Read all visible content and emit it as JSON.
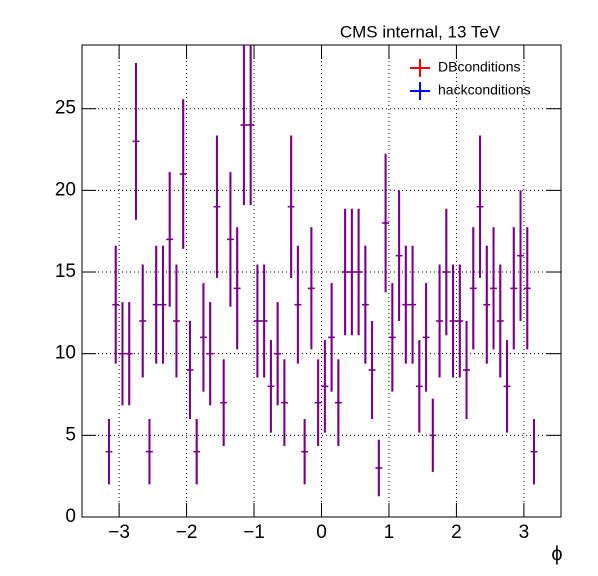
{
  "chart_data": {
    "type": "histogram_errorbar",
    "title": "CMS internal, 13 TeV",
    "x_label": "ϕ",
    "bins": [
      -3.2,
      -3.1,
      -3.0,
      -2.9,
      -2.8,
      -2.7,
      -2.6,
      -2.5,
      -2.4,
      -2.3,
      -2.2,
      -2.1,
      -2.0,
      -1.9,
      -1.8,
      -1.7,
      -1.6,
      -1.5,
      -1.4,
      -1.3,
      -1.2,
      -1.1,
      -1.0,
      -0.9,
      -0.8,
      -0.7,
      -0.6,
      -0.5,
      -0.4,
      -0.3,
      -0.2,
      -0.1,
      0.0,
      0.1,
      0.2,
      0.3,
      0.4,
      0.5,
      0.6,
      0.7,
      0.8,
      0.9,
      1.0,
      1.1,
      1.2,
      1.3,
      1.4,
      1.5,
      1.6,
      1.7,
      1.8,
      1.9,
      2.0,
      2.1,
      2.2,
      2.3,
      2.4,
      2.5,
      2.6,
      2.7,
      2.8,
      2.9,
      3.0,
      3.1,
      3.2
    ],
    "series": [
      {
        "name": "DBconditions",
        "color": "#ff0000",
        "values": [
          4,
          13,
          10,
          10,
          23,
          12,
          4,
          13,
          13,
          17,
          12,
          21,
          9,
          4,
          11,
          10,
          19,
          7,
          17,
          14,
          24,
          24,
          12,
          12,
          8,
          10,
          7,
          19,
          13,
          4,
          14,
          7,
          8,
          11,
          7,
          15,
          15,
          15,
          13,
          9,
          3,
          18,
          11,
          16,
          13,
          13,
          8,
          11,
          5,
          12,
          15,
          12,
          12,
          9,
          14,
          19,
          13,
          14,
          12,
          8,
          14,
          16,
          14,
          4
        ],
        "errors": [
          2,
          3.61,
          3.16,
          3.16,
          4.8,
          3.46,
          2,
          3.61,
          3.61,
          4.12,
          3.46,
          4.58,
          3,
          2,
          3.32,
          3.16,
          4.36,
          2.65,
          4.12,
          3.74,
          4.9,
          4.9,
          3.46,
          3.46,
          2.83,
          3.16,
          2.65,
          4.36,
          3.61,
          2,
          3.74,
          2.65,
          2.83,
          3.32,
          2.65,
          3.87,
          3.87,
          3.87,
          3.61,
          3,
          1.73,
          4.24,
          3.32,
          4,
          3.61,
          3.61,
          2.83,
          3.32,
          2.24,
          3.46,
          3.87,
          3.46,
          3.46,
          3,
          3.74,
          4.36,
          3.61,
          3.74,
          3.46,
          2.83,
          3.74,
          4,
          3.74,
          2
        ]
      },
      {
        "name": "hackconditions",
        "color": "#0000ff",
        "values": [
          4,
          13,
          10,
          10,
          23,
          12,
          4,
          13,
          13,
          17,
          12,
          21,
          9,
          4,
          11,
          10,
          19,
          7,
          17,
          14,
          24,
          24,
          12,
          12,
          8,
          10,
          7,
          19,
          13,
          4,
          14,
          7,
          8,
          11,
          7,
          15,
          15,
          15,
          13,
          9,
          3,
          18,
          11,
          16,
          13,
          13,
          8,
          11,
          5,
          12,
          15,
          12,
          12,
          9,
          14,
          19,
          13,
          14,
          12,
          8,
          14,
          16,
          14,
          4
        ],
        "errors": [
          2,
          3.61,
          3.16,
          3.16,
          4.8,
          3.46,
          2,
          3.61,
          3.61,
          4.12,
          3.46,
          4.58,
          3,
          2,
          3.32,
          3.16,
          4.36,
          2.65,
          4.12,
          3.74,
          4.9,
          4.9,
          3.46,
          3.46,
          2.83,
          3.16,
          2.65,
          4.36,
          3.61,
          2,
          3.74,
          2.65,
          2.83,
          3.32,
          2.65,
          3.87,
          3.87,
          3.87,
          3.61,
          3,
          1.73,
          4.24,
          3.32,
          4,
          3.61,
          3.61,
          2.83,
          3.32,
          2.24,
          3.46,
          3.87,
          3.46,
          3.46,
          3,
          3.74,
          4.36,
          3.61,
          3.74,
          3.46,
          2.83,
          3.74,
          4,
          3.74,
          2
        ]
      }
    ],
    "xlim": [
      -3.55,
      3.55
    ],
    "ylim": [
      0,
      28.9
    ],
    "xticks": [
      {
        "value": -3,
        "label": "−3"
      },
      {
        "value": -2,
        "label": "−2"
      },
      {
        "value": -1,
        "label": "−1"
      },
      0,
      1,
      2,
      3
    ],
    "yticks": [
      0,
      5,
      10,
      15,
      20,
      25
    ],
    "grid": true,
    "legend": "upper right"
  }
}
